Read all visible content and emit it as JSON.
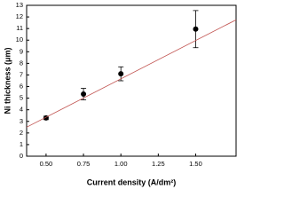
{
  "chart_data": {
    "type": "scatter",
    "xlabel": "Current density (A/dm²)",
    "ylabel": "Ni thickness (μm)",
    "xlim": [
      0.37,
      1.77
    ],
    "ylim": [
      0,
      13
    ],
    "xticks": [
      {
        "value": 0.5,
        "label": "0.50"
      },
      {
        "value": 0.75,
        "label": "0.75"
      },
      {
        "value": 1.0,
        "label": "1.00"
      },
      {
        "value": 1.25,
        "label": "1.25"
      },
      {
        "value": 1.5,
        "label": "1.50"
      }
    ],
    "yticks": [
      0,
      1,
      2,
      3,
      4,
      5,
      6,
      7,
      8,
      9,
      10,
      11,
      12,
      13
    ],
    "series": [
      {
        "color": "#000000",
        "x": [
          0.5,
          0.75,
          1.0,
          1.5
        ],
        "values": [
          3.3,
          5.35,
          7.1,
          10.95
        ],
        "errors": [
          0.15,
          0.5,
          0.6,
          1.6
        ]
      },
      {
        "type": "line",
        "color": "#c0504d",
        "x": [
          0.37,
          1.77
        ],
        "values": [
          2.5,
          11.75
        ]
      }
    ]
  }
}
